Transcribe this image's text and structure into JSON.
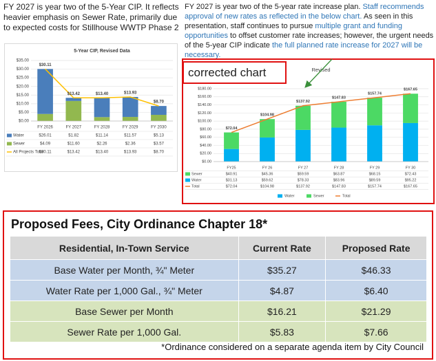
{
  "left_text": "FY 2027 is year two of the 5-Year CIP.  It reflects heavier emphasis on Sewer Rate, primarily due to expected costs for Stillhouse WWTP Phase 2",
  "right_text": [
    {
      "text": "FY 2027 is year two of the 5-year rate increase plan. ",
      "highlight": false
    },
    {
      "text": "Staff recommends approval of new rates as reflected in the below chart.",
      "highlight": true
    },
    {
      "text": "  As seen in this presentation, staff continues to pursue ",
      "highlight": false
    },
    {
      "text": "multiple grant and funding opportunities",
      "highlight": true
    },
    {
      "text": " to offset customer rate increases; however, the urgent needs of the 5-year CIP indicate ",
      "highlight": false
    },
    {
      "text": "the full planned rate increase for 2027 will be necessary.",
      "highlight": true
    }
  ],
  "annotation": "corrected chart",
  "chart_data": [
    {
      "type": "bar",
      "stacked": true,
      "title": "5-Year CIP, Revised Data",
      "categories": [
        "FY 2026",
        "FY 2027",
        "FY 2028",
        "FY 2029",
        "FY 2030"
      ],
      "series": [
        {
          "name": "Water",
          "color": "#4a7ebb",
          "values": [
            26.01,
            1.82,
            11.14,
            11.57,
            5.13
          ],
          "value_labels": [
            "$26.01",
            "$1.82",
            "$11.14",
            "$11.57",
            "$5.13"
          ]
        },
        {
          "name": "Sewer",
          "color": "#92b84f",
          "values": [
            4.09,
            11.6,
            2.26,
            2.36,
            3.57
          ],
          "value_labels": [
            "$4.09",
            "$11.60",
            "$2.26",
            "$2.36",
            "$3.57"
          ]
        },
        {
          "name": "All Projects Total",
          "type": "line",
          "color": "#ffc000",
          "values": [
            30.11,
            13.42,
            13.4,
            13.93,
            8.7
          ],
          "value_labels": [
            "$30.11",
            "$13.42",
            "$13.40",
            "$13.93",
            "$8.70"
          ]
        }
      ],
      "ylim": [
        0,
        35
      ],
      "yticks": [
        {
          "value": 0,
          "label": "$0.00"
        },
        {
          "value": 5,
          "label": "$5.00"
        },
        {
          "value": 10,
          "label": "$10.00"
        },
        {
          "value": 15,
          "label": "$15.00"
        },
        {
          "value": 20,
          "label": "$20.00"
        },
        {
          "value": 25,
          "label": "$25.00"
        },
        {
          "value": 30,
          "label": "$30.00"
        },
        {
          "value": 35,
          "label": "$35.00"
        }
      ],
      "grid": true,
      "legend": false
    },
    {
      "type": "bar",
      "stacked": true,
      "title": "Revised",
      "categories": [
        "FY25",
        "FY 26",
        "FY 27",
        "FY 28",
        "FY 29",
        "FY 30"
      ],
      "series": [
        {
          "name": "Sewer",
          "color": "#4cd964",
          "values": [
            40.91,
            45.36,
            59.59,
            63.87,
            68.15,
            72.43
          ],
          "value_labels": [
            "$40.91",
            "$45.36",
            "$59.59",
            "$63.87",
            "$68.15",
            "$72.43"
          ]
        },
        {
          "name": "Water",
          "color": "#00b0f0",
          "values": [
            31.13,
            59.62,
            78.33,
            83.96,
            89.59,
            95.22
          ],
          "value_labels": [
            "$31.13",
            "$59.62",
            "$78.33",
            "$83.96",
            "$89.59",
            "$95.22"
          ]
        },
        {
          "name": "Total",
          "type": "line",
          "color": "#ed7d31",
          "values": [
            72.04,
            104.98,
            137.92,
            147.83,
            157.74,
            167.65
          ],
          "value_labels": [
            "$72.04",
            "$104.98",
            "$137.92",
            "$147.83",
            "$157.74",
            "$167.65"
          ]
        }
      ],
      "ylim": [
        0,
        180
      ],
      "yticks": [
        {
          "value": 0,
          "label": "$0.00"
        },
        {
          "value": 20,
          "label": "$20.00"
        },
        {
          "value": 40,
          "label": "$40.00"
        },
        {
          "value": 60,
          "label": "$60.00"
        },
        {
          "value": 80,
          "label": "$80.00"
        },
        {
          "value": 100,
          "label": "$100.00"
        },
        {
          "value": 120,
          "label": "$120.00"
        },
        {
          "value": 140,
          "label": "$140.00"
        },
        {
          "value": 160,
          "label": "$160.00"
        },
        {
          "value": 180,
          "label": "$180.00"
        }
      ],
      "grid": true,
      "legend": "bottom"
    }
  ],
  "fee_table": {
    "title": "Proposed Fees, City Ordinance Chapter 18*",
    "columns": [
      "Residential, In-Town Service",
      "Current Rate",
      "Proposed Rate"
    ],
    "rows": [
      [
        "Base Water per Month, ¾\" Meter",
        "$35.27",
        "$46.33"
      ],
      [
        "Water Rate per 1,000 Gal., ¾\" Meter",
        "$4.87",
        "$6.40"
      ],
      [
        "Base Sewer per Month",
        "$16.21",
        "$21.29"
      ],
      [
        "Sewer Rate per 1,000 Gal.",
        "$5.83",
        "$7.66"
      ]
    ],
    "footnote": "*Ordinance considered on a separate agenda item by City Council"
  }
}
